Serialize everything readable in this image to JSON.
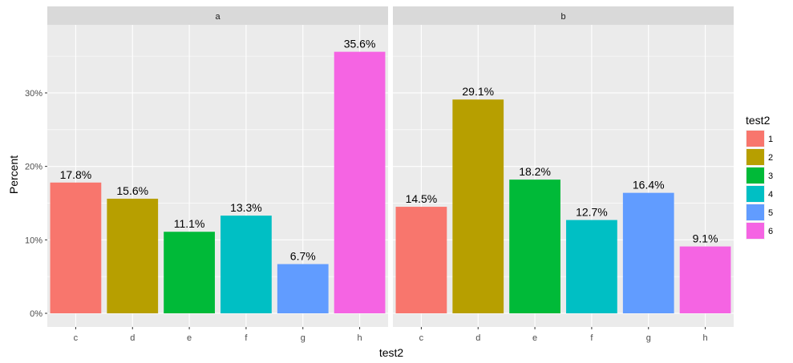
{
  "chart_data": {
    "type": "bar",
    "facet_variable_values": [
      "a",
      "b"
    ],
    "categories": [
      "c",
      "d",
      "e",
      "f",
      "g",
      "h"
    ],
    "xlabel": "test2",
    "ylabel": "Percent",
    "yticks": [
      "0%",
      "10%",
      "20%",
      "30%"
    ],
    "ylim": [
      0,
      0.375
    ],
    "grid": true,
    "legend_position": "right",
    "legend": {
      "title": "test2",
      "entries": [
        {
          "label": "1",
          "color": "#F8766D"
        },
        {
          "label": "2",
          "color": "#B79F00"
        },
        {
          "label": "3",
          "color": "#00BA38"
        },
        {
          "label": "4",
          "color": "#00BFC4"
        },
        {
          "label": "5",
          "color": "#619CFF"
        },
        {
          "label": "6",
          "color": "#F564E3"
        }
      ]
    },
    "facets": [
      {
        "strip": "a",
        "values": [
          0.178,
          0.156,
          0.111,
          0.133,
          0.067,
          0.356
        ],
        "labels": [
          "17.8%",
          "15.6%",
          "11.1%",
          "13.3%",
          "6.7%",
          "35.6%"
        ],
        "fill_groups": [
          "1",
          "2",
          "3",
          "4",
          "5",
          "6"
        ]
      },
      {
        "strip": "b",
        "values": [
          0.145,
          0.291,
          0.182,
          0.127,
          0.164,
          0.091
        ],
        "labels": [
          "14.5%",
          "29.1%",
          "18.2%",
          "12.7%",
          "16.4%",
          "9.1%"
        ],
        "fill_groups": [
          "1",
          "2",
          "3",
          "4",
          "5",
          "6"
        ]
      }
    ]
  }
}
